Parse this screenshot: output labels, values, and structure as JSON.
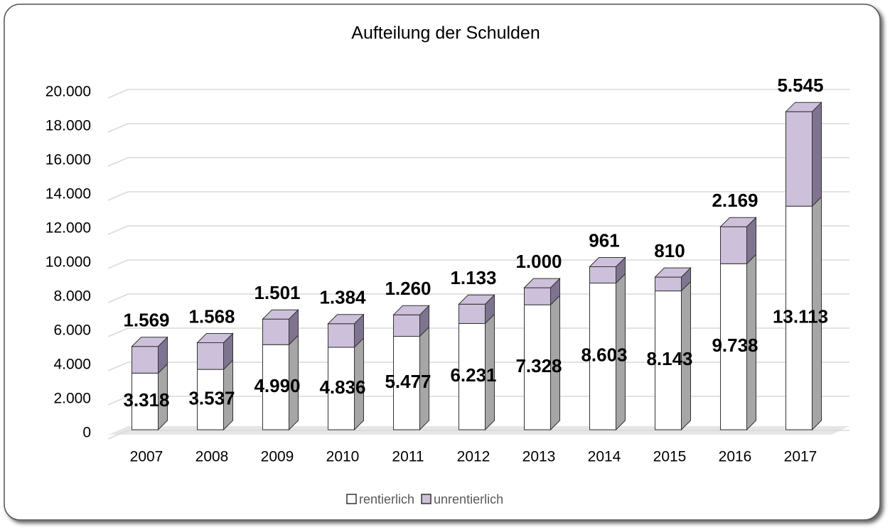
{
  "chart_data": {
    "type": "bar",
    "stacked": true,
    "title": "Aufteilung der Schulden",
    "categories": [
      "2007",
      "2008",
      "2009",
      "2010",
      "2011",
      "2012",
      "2013",
      "2014",
      "2015",
      "2016",
      "2017"
    ],
    "series": [
      {
        "name": "rentierlich",
        "color": "#ffffff",
        "side_color": "#a6a6a6",
        "values": [
          3318,
          3537,
          4990,
          4836,
          5477,
          6231,
          7328,
          8603,
          8143,
          9738,
          13113
        ],
        "value_labels": [
          "3.318",
          "3.537",
          "4.990",
          "4.836",
          "5.477",
          "6.231",
          "7.328",
          "8.603",
          "8.143",
          "9.738",
          "13.113"
        ]
      },
      {
        "name": "unrentierlich",
        "color": "#ccc0da",
        "side_color": "#7f7490",
        "values": [
          1569,
          1568,
          1501,
          1384,
          1260,
          1133,
          1000,
          961,
          810,
          2169,
          5545
        ],
        "value_labels": [
          "1.569",
          "1.568",
          "1.501",
          "1.384",
          "1.260",
          "1.133",
          "1.000",
          "961",
          "810",
          "2.169",
          "5.545"
        ]
      }
    ],
    "ylim": [
      0,
      20000
    ],
    "yticks": [
      0,
      {
        "value": 2000,
        "label": "2.000"
      },
      {
        "value": 4000,
        "label": "4.000"
      },
      {
        "value": 6000,
        "label": "6.000"
      },
      {
        "value": 8000,
        "label": "8.000"
      },
      {
        "value": 10000,
        "label": "10.000"
      },
      {
        "value": 12000,
        "label": "12.000"
      },
      {
        "value": 14000,
        "label": "14.000"
      },
      {
        "value": 16000,
        "label": "16.000"
      },
      {
        "value": 18000,
        "label": "18.000"
      },
      {
        "value": 20000,
        "label": "20.000"
      }
    ],
    "grid": true,
    "legend": "bottom"
  }
}
